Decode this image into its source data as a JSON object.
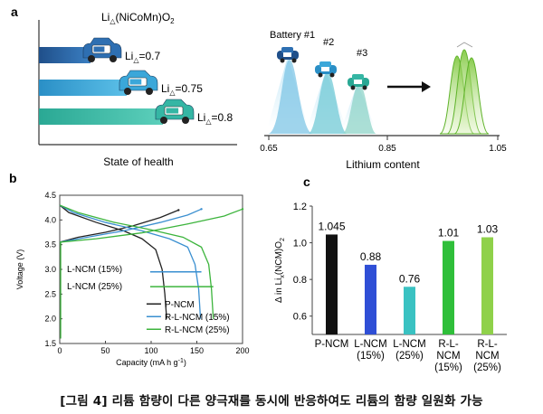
{
  "panel_a": {
    "label": "a",
    "formula_prefix": "Li",
    "formula_sub": "△",
    "formula_suffix": "(NiCoMn)O",
    "formula_sub2": "2",
    "rows": [
      {
        "prefix": "Li",
        "sub": "△",
        "value": "=0.7",
        "color": "#2e6fb2",
        "level": 0.7
      },
      {
        "prefix": "Li",
        "sub": "△",
        "value": "=0.75",
        "color": "#3ba7d9",
        "level": 0.75
      },
      {
        "prefix": "Li",
        "sub": "△",
        "value": "=0.8",
        "color": "#35b6a4",
        "level": 0.8
      }
    ],
    "xlabel": "State of health",
    "right": {
      "batteries": [
        "Battery #1",
        "#2",
        "#3"
      ],
      "ticks": [
        "0.65",
        "0.85",
        "1.05"
      ],
      "xlabel": "Lithium content"
    }
  },
  "chart_data": [
    {
      "type": "line",
      "panel": "b",
      "xlabel": "Capacity (mA h g",
      "xlabel_sup": "-1",
      "xlabel_close": ")",
      "ylabel": "Voltage (V)",
      "xlim": [
        0,
        200
      ],
      "ylim": [
        1.5,
        4.5
      ],
      "xticks": [
        0,
        50,
        100,
        150,
        200
      ],
      "yticks": [
        1.5,
        2.0,
        2.5,
        3.0,
        3.5,
        4.0,
        4.5
      ],
      "annotations": [
        "L-NCM (15%)",
        "L-NCM (25%)"
      ],
      "series": [
        {
          "name": "P-NCM",
          "color": "#222222",
          "charge": [
            [
              0,
              3.55
            ],
            [
              20,
              3.65
            ],
            [
              50,
              3.75
            ],
            [
              80,
              3.88
            ],
            [
              110,
              4.05
            ],
            [
              130,
              4.2
            ]
          ],
          "discharge": [
            [
              0,
              4.3
            ],
            [
              10,
              4.15
            ],
            [
              40,
              3.95
            ],
            [
              70,
              3.78
            ],
            [
              90,
              3.62
            ],
            [
              105,
              3.4
            ],
            [
              112,
              3.0
            ],
            [
              115,
              2.5
            ],
            [
              117,
              2.0
            ]
          ]
        },
        {
          "name": "R-L-NCM (15%)",
          "color": "#3a8fd0",
          "charge": [
            [
              0,
              3.55
            ],
            [
              30,
              3.65
            ],
            [
              70,
              3.78
            ],
            [
              110,
              3.95
            ],
            [
              140,
              4.1
            ],
            [
              155,
              4.22
            ]
          ],
          "discharge": [
            [
              0,
              4.3
            ],
            [
              15,
              4.15
            ],
            [
              50,
              3.95
            ],
            [
              90,
              3.78
            ],
            [
              120,
              3.62
            ],
            [
              140,
              3.45
            ],
            [
              148,
              3.1
            ],
            [
              152,
              2.6
            ],
            [
              154,
              2.0
            ]
          ]
        },
        {
          "name": "R-L-NCM (25%)",
          "color": "#3cb43c",
          "charge": [
            [
              0,
              3.55
            ],
            [
              40,
              3.62
            ],
            [
              90,
              3.74
            ],
            [
              140,
              3.92
            ],
            [
              180,
              4.08
            ],
            [
              200,
              4.22
            ]
          ],
          "discharge": [
            [
              0,
              4.3
            ],
            [
              20,
              4.15
            ],
            [
              60,
              3.95
            ],
            [
              100,
              3.8
            ],
            [
              135,
              3.65
            ],
            [
              155,
              3.45
            ],
            [
              163,
              3.1
            ],
            [
              166,
              2.6
            ],
            [
              168,
              2.0
            ]
          ]
        }
      ]
    },
    {
      "type": "bar",
      "panel": "c",
      "ylabel_prefix": "Δ in Li",
      "ylabel_sub": "x",
      "ylabel_suffix": "(NCM)O",
      "ylabel_sub2": "2",
      "ylim": [
        0.5,
        1.2
      ],
      "yticks": [
        0.6,
        0.8,
        1.0,
        1.2
      ],
      "categories": [
        [
          "P-NCM"
        ],
        [
          "L-NCM",
          "(15%)"
        ],
        [
          "L-NCM",
          "(25%)"
        ],
        [
          "R-L-",
          "NCM",
          "(15%)"
        ],
        [
          "R-L-",
          "NCM",
          "(25%)"
        ]
      ],
      "values": [
        1.045,
        0.88,
        0.76,
        1.01,
        1.03
      ],
      "value_labels": [
        "1.045",
        "0.88",
        "0.76",
        "1.01",
        "1.03"
      ],
      "colors": [
        "#111111",
        "#2f4fd6",
        "#3ac2c2",
        "#2fbf3a",
        "#8fd14a"
      ]
    }
  ],
  "caption": "[그림 4] 리튬 함량이 다른 양극재를 동시에 반응하여도 리튬의 함량 일원화 가능"
}
